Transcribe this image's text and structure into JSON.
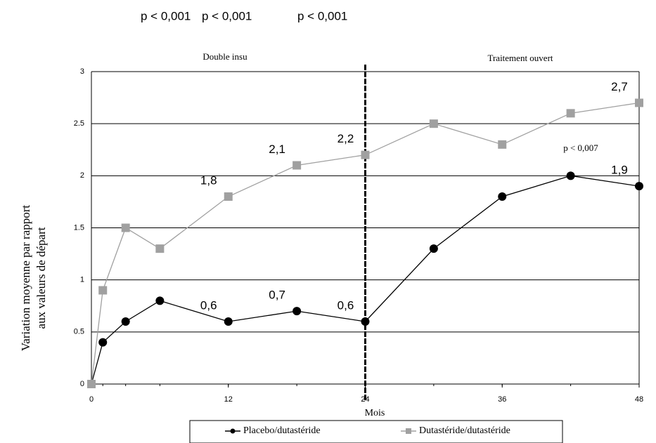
{
  "chart_data": {
    "type": "line",
    "xlabel": "Mois",
    "ylabel": [
      "Variation moyenne par rapport",
      "aux valeurs de départ"
    ],
    "annotations": [
      "p < 0,001",
      "p < 0,001",
      "p < 0,001",
      "Double insu",
      "Traitement ouvert",
      "p < 0,007"
    ],
    "x": [
      0,
      1,
      3,
      6,
      12,
      18,
      24,
      30,
      36,
      42,
      48
    ],
    "series": [
      {
        "name": "Placebo/dutastéride",
        "color": "#000000",
        "marker": "circle",
        "values": [
          0,
          0.4,
          0.6,
          0.8,
          0.6,
          0.7,
          0.6,
          1.3,
          1.8,
          2.0,
          1.9
        ],
        "value_labels": [
          null,
          null,
          null,
          null,
          "0,6",
          "0,7",
          "0,6",
          null,
          null,
          null,
          "1,9"
        ]
      },
      {
        "name": "Dutastéride/dutastéride",
        "color": "#a0a0a0",
        "marker": "square",
        "values": [
          0,
          0.9,
          1.5,
          1.3,
          1.8,
          2.1,
          2.2,
          2.5,
          2.3,
          2.6,
          2.7
        ],
        "value_labels": [
          null,
          null,
          null,
          null,
          "1,8",
          "2,1",
          "2,2",
          null,
          null,
          null,
          "2,7"
        ]
      }
    ],
    "xlim": [
      0,
      48
    ],
    "xticks": [
      0,
      12,
      24,
      36,
      48
    ],
    "ylim": [
      0,
      3
    ],
    "yticks": [
      0,
      0.5,
      1,
      1.5,
      2,
      2.5,
      3
    ],
    "grid": true,
    "vline": 24,
    "legend": "bottom"
  }
}
